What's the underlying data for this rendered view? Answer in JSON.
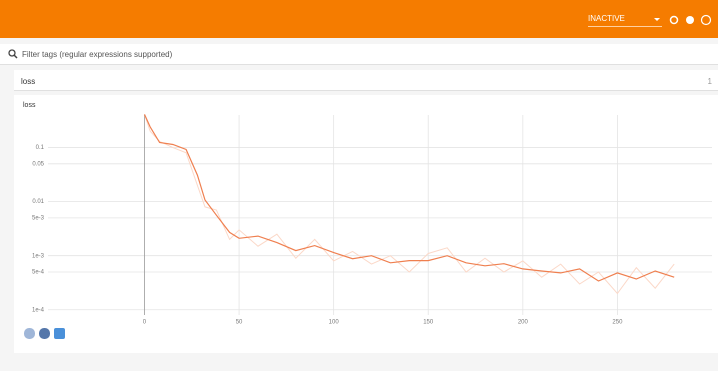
{
  "header": {
    "status": "INACTIVE"
  },
  "filter": {
    "placeholder": "Filter tags (regular expressions supported)"
  },
  "section": {
    "title": "loss",
    "count": "1"
  },
  "chart_data": {
    "type": "line",
    "title": "loss",
    "log_y": true,
    "grid": true,
    "x": [
      0,
      3,
      8,
      15,
      22,
      28,
      32,
      38,
      45,
      50,
      60,
      70,
      80,
      90,
      100,
      110,
      120,
      130,
      140,
      150,
      160,
      170,
      180,
      190,
      200,
      210,
      220,
      230,
      240,
      250,
      260,
      270,
      280
    ],
    "series": [
      {
        "color": "#fbd8c8",
        "values": [
          0.41,
          0.2,
          0.13,
          0.1,
          0.08,
          0.02,
          0.008,
          0.007,
          0.002,
          0.003,
          0.0015,
          0.0025,
          0.0009,
          0.002,
          0.0008,
          0.0012,
          0.0007,
          0.001,
          0.0005,
          0.0011,
          0.0014,
          0.0005,
          0.0009,
          0.0005,
          0.0008,
          0.0004,
          0.0007,
          0.0003,
          0.0005,
          0.0002,
          0.0006,
          0.00025,
          0.0007
        ]
      },
      {
        "color": "#ef7f4f",
        "values": [
          0.41,
          0.24,
          0.124,
          0.114,
          0.092,
          0.031,
          0.0107,
          0.0056,
          0.0027,
          0.0021,
          0.0023,
          0.00175,
          0.00124,
          0.00154,
          0.00114,
          0.00088,
          0.001,
          0.00074,
          0.00081,
          0.00081,
          0.001,
          0.00074,
          0.00065,
          0.00071,
          0.00057,
          0.00052,
          0.00048,
          0.00057,
          0.00034,
          0.00048,
          0.00037,
          0.00052,
          0.0004
        ]
      }
    ],
    "xlim": [
      -51,
      300
    ],
    "xticks": [
      0,
      50,
      100,
      150,
      200,
      250
    ],
    "ylim": [
      8e-05,
      0.4
    ],
    "yticks": [
      0.1,
      0.05,
      {
        "value": 0.01,
        "label": "0.01"
      },
      {
        "value": 0.005,
        "label": "5e-3"
      },
      {
        "value": 0.001,
        "label": "1e-3"
      },
      {
        "value": 0.0005,
        "label": "5e-4"
      },
      {
        "value": 0.0001,
        "label": "1e-4"
      }
    ]
  }
}
